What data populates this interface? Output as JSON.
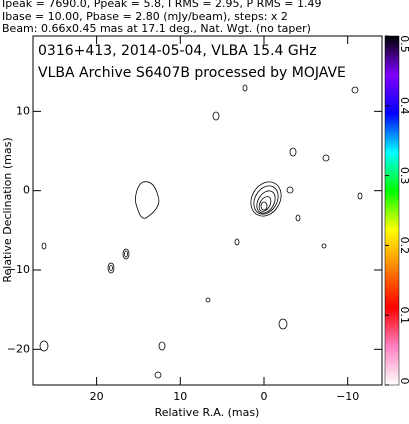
{
  "chart_data": {
    "type": "contour",
    "header": [
      "Ipeak = 7690.0, Ppeak = 5.8, I RMS = 2.95, P RMS = 1.49",
      "Ibase = 10.00, Pbase = 2.80 (mJy/beam), steps: x 2",
      "Beam: 0.66x0.45 mas at 17.1 deg., Nat. Wgt. (no taper)"
    ],
    "title": "0316+413, 2014-05-04, VLBA 15.4 GHz",
    "subtitle": "VLBA Archive S6407B processed by MOJAVE",
    "x_label": "Relative R.A. (mas)",
    "y_label": "Relative Declination (mas)",
    "xlim": [
      27.6,
      -14.1
    ],
    "xticks": [
      20,
      10,
      0,
      {
        "value": -10,
        "label": "−10"
      }
    ],
    "ylim": [
      -24.5,
      19.5
    ],
    "yticks": [
      10,
      0,
      {
        "value": -10,
        "label": "−10"
      },
      {
        "value": -20,
        "label": "−20"
      }
    ],
    "colorbar_lim": [
      0,
      0.5
    ],
    "colorbar_ticks": [
      0,
      0.1,
      0.2,
      0.3,
      0.4,
      0.5
    ],
    "colorbar_colors": [
      "#ffffff",
      "#ff80c0",
      "#ff0000",
      "#ff8000",
      "#ffff00",
      "#00ff00",
      "#00ffff",
      "#0000ff",
      "#8000ff",
      "#000000"
    ]
  }
}
